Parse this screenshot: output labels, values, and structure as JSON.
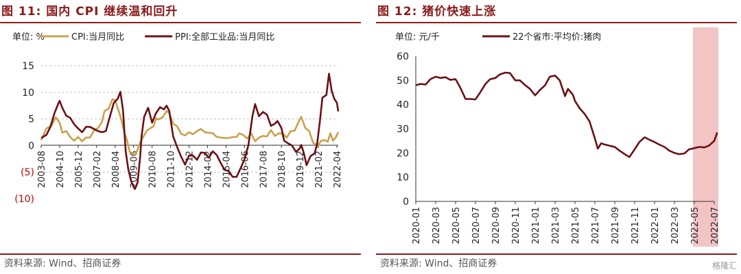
{
  "chart_data": [
    {
      "type": "line",
      "title": "图 11:  国内 CPI 继续温和回升",
      "unit_label": "单位:  %",
      "source": "资料来源:  Wind、招商证券",
      "ylim": [
        -10,
        15
      ],
      "yticks": [
        15,
        10,
        5,
        0,
        -5,
        -10
      ],
      "ytick_labels": [
        "15",
        "10",
        "5",
        "0",
        "(5)",
        "(10)"
      ],
      "negative_label_color": "#C00000",
      "x_range": [
        "2003-08",
        "2022-05"
      ],
      "xtick_labels": [
        "2003-08",
        "2004-10",
        "2005-12",
        "2007-02",
        "2008-04",
        "2009-06",
        "2010-08",
        "2011-10",
        "2012-12",
        "2014-02",
        "2015-04",
        "2016-06",
        "2017-08",
        "2018-10",
        "2019-12",
        "2021-02",
        "2022-04"
      ],
      "grid": "horizontal-dashed",
      "legend_position": "top",
      "series": [
        {
          "name": "CPI:当月同比",
          "color": "#C9A14A",
          "points": [
            [
              "2003-08",
              1.0
            ],
            [
              "2003-12",
              3.2
            ],
            [
              "2004-04",
              3.8
            ],
            [
              "2004-07",
              5.3
            ],
            [
              "2004-10",
              4.3
            ],
            [
              "2004-12",
              2.4
            ],
            [
              "2005-03",
              2.7
            ],
            [
              "2005-06",
              1.6
            ],
            [
              "2005-09",
              0.9
            ],
            [
              "2005-12",
              1.6
            ],
            [
              "2006-03",
              0.8
            ],
            [
              "2006-06",
              1.5
            ],
            [
              "2006-09",
              1.5
            ],
            [
              "2006-12",
              2.8
            ],
            [
              "2007-03",
              3.3
            ],
            [
              "2007-06",
              4.4
            ],
            [
              "2007-08",
              6.5
            ],
            [
              "2007-11",
              6.9
            ],
            [
              "2008-02",
              8.7
            ],
            [
              "2008-04",
              8.5
            ],
            [
              "2008-07",
              6.3
            ],
            [
              "2008-09",
              4.6
            ],
            [
              "2008-11",
              2.4
            ],
            [
              "2009-01",
              1.0
            ],
            [
              "2009-03",
              -1.2
            ],
            [
              "2009-05",
              -1.4
            ],
            [
              "2009-07",
              -1.8
            ],
            [
              "2009-09",
              -0.8
            ],
            [
              "2009-11",
              0.6
            ],
            [
              "2010-01",
              1.5
            ],
            [
              "2010-04",
              2.8
            ],
            [
              "2010-07",
              3.3
            ],
            [
              "2010-09",
              3.6
            ],
            [
              "2010-11",
              5.1
            ],
            [
              "2011-01",
              4.9
            ],
            [
              "2011-04",
              5.3
            ],
            [
              "2011-07",
              6.5
            ],
            [
              "2011-09",
              6.1
            ],
            [
              "2011-12",
              4.1
            ],
            [
              "2012-03",
              3.6
            ],
            [
              "2012-06",
              2.2
            ],
            [
              "2012-09",
              1.9
            ],
            [
              "2012-12",
              2.5
            ],
            [
              "2013-03",
              2.1
            ],
            [
              "2013-06",
              2.7
            ],
            [
              "2013-09",
              3.1
            ],
            [
              "2013-12",
              2.5
            ],
            [
              "2014-03",
              2.4
            ],
            [
              "2014-06",
              2.3
            ],
            [
              "2014-09",
              1.6
            ],
            [
              "2014-12",
              1.5
            ],
            [
              "2015-03",
              1.4
            ],
            [
              "2015-06",
              1.4
            ],
            [
              "2015-09",
              1.6
            ],
            [
              "2015-12",
              1.6
            ],
            [
              "2016-02",
              2.3
            ],
            [
              "2016-05",
              2.0
            ],
            [
              "2016-08",
              1.3
            ],
            [
              "2016-11",
              2.3
            ],
            [
              "2017-02",
              0.8
            ],
            [
              "2017-05",
              1.5
            ],
            [
              "2017-08",
              1.8
            ],
            [
              "2017-11",
              1.7
            ],
            [
              "2018-02",
              2.9
            ],
            [
              "2018-05",
              1.8
            ],
            [
              "2018-08",
              2.3
            ],
            [
              "2018-11",
              2.2
            ],
            [
              "2019-02",
              1.5
            ],
            [
              "2019-05",
              2.7
            ],
            [
              "2019-08",
              2.8
            ],
            [
              "2019-11",
              4.5
            ],
            [
              "2020-01",
              5.4
            ],
            [
              "2020-04",
              3.3
            ],
            [
              "2020-07",
              2.7
            ],
            [
              "2020-10",
              0.5
            ],
            [
              "2020-12",
              0.2
            ],
            [
              "2021-01",
              -0.3
            ],
            [
              "2021-04",
              0.9
            ],
            [
              "2021-07",
              1.0
            ],
            [
              "2021-09",
              0.7
            ],
            [
              "2021-11",
              2.3
            ],
            [
              "2022-01",
              0.9
            ],
            [
              "2022-03",
              1.5
            ],
            [
              "2022-05",
              2.5
            ]
          ]
        },
        {
          "name": "PPI:全部工业品:当月同比",
          "color": "#6B0F14",
          "points": [
            [
              "2003-08",
              1.4
            ],
            [
              "2003-12",
              2.0
            ],
            [
              "2004-03",
              3.5
            ],
            [
              "2004-06",
              6.0
            ],
            [
              "2004-09",
              7.9
            ],
            [
              "2004-10",
              8.4
            ],
            [
              "2004-12",
              7.1
            ],
            [
              "2005-03",
              5.6
            ],
            [
              "2005-06",
              5.2
            ],
            [
              "2005-09",
              4.0
            ],
            [
              "2005-12",
              3.2
            ],
            [
              "2006-03",
              2.5
            ],
            [
              "2006-06",
              3.5
            ],
            [
              "2006-09",
              3.5
            ],
            [
              "2006-12",
              3.1
            ],
            [
              "2007-03",
              2.7
            ],
            [
              "2007-06",
              2.5
            ],
            [
              "2007-09",
              2.7
            ],
            [
              "2007-12",
              5.4
            ],
            [
              "2008-03",
              8.0
            ],
            [
              "2008-06",
              8.8
            ],
            [
              "2008-08",
              10.1
            ],
            [
              "2008-10",
              6.6
            ],
            [
              "2008-12",
              -1.1
            ],
            [
              "2009-02",
              -4.5
            ],
            [
              "2009-04",
              -6.6
            ],
            [
              "2009-06",
              -7.8
            ],
            [
              "2009-07",
              -8.2
            ],
            [
              "2009-09",
              -7.0
            ],
            [
              "2009-11",
              -2.1
            ],
            [
              "2009-12",
              1.7
            ],
            [
              "2010-02",
              5.4
            ],
            [
              "2010-05",
              7.1
            ],
            [
              "2010-08",
              4.3
            ],
            [
              "2010-11",
              6.1
            ],
            [
              "2011-02",
              7.2
            ],
            [
              "2011-05",
              6.8
            ],
            [
              "2011-07",
              7.5
            ],
            [
              "2011-09",
              6.5
            ],
            [
              "2011-12",
              1.7
            ],
            [
              "2012-03",
              -0.3
            ],
            [
              "2012-06",
              -2.1
            ],
            [
              "2012-09",
              -3.6
            ],
            [
              "2012-12",
              -1.9
            ],
            [
              "2013-03",
              -1.9
            ],
            [
              "2013-06",
              -2.7
            ],
            [
              "2013-09",
              -1.3
            ],
            [
              "2013-12",
              -1.4
            ],
            [
              "2014-03",
              -2.3
            ],
            [
              "2014-06",
              -1.1
            ],
            [
              "2014-09",
              -1.8
            ],
            [
              "2014-12",
              -3.3
            ],
            [
              "2015-03",
              -4.6
            ],
            [
              "2015-06",
              -4.8
            ],
            [
              "2015-09",
              -5.9
            ],
            [
              "2015-12",
              -5.9
            ],
            [
              "2016-03",
              -4.3
            ],
            [
              "2016-06",
              -2.6
            ],
            [
              "2016-09",
              0.1
            ],
            [
              "2016-12",
              5.5
            ],
            [
              "2017-02",
              7.8
            ],
            [
              "2017-05",
              5.5
            ],
            [
              "2017-08",
              6.3
            ],
            [
              "2017-11",
              5.8
            ],
            [
              "2018-02",
              3.7
            ],
            [
              "2018-05",
              4.1
            ],
            [
              "2018-07",
              4.6
            ],
            [
              "2018-10",
              3.3
            ],
            [
              "2018-12",
              0.9
            ],
            [
              "2019-03",
              0.4
            ],
            [
              "2019-06",
              0.0
            ],
            [
              "2019-09",
              -1.2
            ],
            [
              "2019-12",
              -0.5
            ],
            [
              "2020-01",
              0.1
            ],
            [
              "2020-03",
              -1.5
            ],
            [
              "2020-05",
              -3.7
            ],
            [
              "2020-08",
              -2.0
            ],
            [
              "2020-11",
              -1.5
            ],
            [
              "2021-01",
              0.3
            ],
            [
              "2021-03",
              4.4
            ],
            [
              "2021-05",
              9.0
            ],
            [
              "2021-08",
              9.5
            ],
            [
              "2021-10",
              13.5
            ],
            [
              "2021-12",
              10.3
            ],
            [
              "2022-02",
              8.8
            ],
            [
              "2022-04",
              8.0
            ],
            [
              "2022-05",
              6.4
            ]
          ]
        }
      ]
    },
    {
      "type": "line",
      "title": "图 12:  猪价快速上涨",
      "unit_label": "单位:  元/千",
      "source": "资料来源:  Wind、招商证券",
      "ylim": [
        0,
        60
      ],
      "yticks": [
        60,
        50,
        40,
        30,
        20,
        10,
        0
      ],
      "x_range": [
        "2020-01",
        "2022-07"
      ],
      "xtick_labels": [
        "2020-01",
        "2020-03",
        "2020-05",
        "2020-07",
        "2020-09",
        "2020-11",
        "2021-01",
        "2021-03",
        "2021-05",
        "2021-07",
        "2021-09",
        "2021-11",
        "2022-01",
        "2022-03",
        "2022-05",
        "2022-07"
      ],
      "highlight_range": [
        "2022-05",
        "2022-07"
      ],
      "highlight_color": "#F2C4C4",
      "grid": "none",
      "legend_position": "top",
      "series": [
        {
          "name": "22个省市:平均价:猪肉",
          "color": "#6B0F14",
          "points": [
            [
              "2020-01",
              48.0
            ],
            [
              "2020-01-15",
              48.5
            ],
            [
              "2020-02",
              48.3
            ],
            [
              "2020-02-15",
              50.5
            ],
            [
              "2020-03",
              51.5
            ],
            [
              "2020-03-15",
              51.0
            ],
            [
              "2020-04",
              51.3
            ],
            [
              "2020-04-15",
              50.2
            ],
            [
              "2020-05",
              50.5
            ],
            [
              "2020-05-15",
              47.0
            ],
            [
              "2020-06",
              42.3
            ],
            [
              "2020-06-15",
              42.3
            ],
            [
              "2020-07",
              42.1
            ],
            [
              "2020-07-15",
              45.0
            ],
            [
              "2020-08",
              48.5
            ],
            [
              "2020-08-15",
              50.5
            ],
            [
              "2020-09",
              51.0
            ],
            [
              "2020-09-15",
              52.5
            ],
            [
              "2020-10",
              53.2
            ],
            [
              "2020-10-15",
              53.0
            ],
            [
              "2020-11",
              50.0
            ],
            [
              "2020-11-15",
              50.0
            ],
            [
              "2020-12",
              48.0
            ],
            [
              "2020-12-15",
              46.5
            ],
            [
              "2021-01",
              43.8
            ],
            [
              "2021-01-15",
              46.0
            ],
            [
              "2021-02",
              48.0
            ],
            [
              "2021-02-15",
              51.5
            ],
            [
              "2021-03",
              52.0
            ],
            [
              "2021-03-15",
              50.0
            ],
            [
              "2021-04",
              43.5
            ],
            [
              "2021-04-10",
              46.5
            ],
            [
              "2021-04-25",
              44.0
            ],
            [
              "2021-05",
              41.5
            ],
            [
              "2021-05-15",
              38.5
            ],
            [
              "2021-06",
              36.0
            ],
            [
              "2021-06-15",
              33.0
            ],
            [
              "2021-07",
              26.0
            ],
            [
              "2021-07-10",
              21.8
            ],
            [
              "2021-07-20",
              24.0
            ],
            [
              "2021-08",
              23.5
            ],
            [
              "2021-08-15",
              23.0
            ],
            [
              "2021-09",
              22.5
            ],
            [
              "2021-09-15",
              21.0
            ],
            [
              "2021-10",
              19.5
            ],
            [
              "2021-10-15",
              18.3
            ],
            [
              "2021-11",
              21.5
            ],
            [
              "2021-11-15",
              24.5
            ],
            [
              "2021-12",
              26.5
            ],
            [
              "2021-12-15",
              25.5
            ],
            [
              "2022-01",
              24.5
            ],
            [
              "2022-01-15",
              23.5
            ],
            [
              "2022-02",
              22.5
            ],
            [
              "2022-02-15",
              21.0
            ],
            [
              "2022-03",
              20.0
            ],
            [
              "2022-03-15",
              19.5
            ],
            [
              "2022-04",
              19.8
            ],
            [
              "2022-04-15",
              21.5
            ],
            [
              "2022-05",
              22.0
            ],
            [
              "2022-05-15",
              22.5
            ],
            [
              "2022-06",
              22.3
            ],
            [
              "2022-06-15",
              23.0
            ],
            [
              "2022-07",
              25.0
            ],
            [
              "2022-07-10",
              28.5
            ]
          ]
        }
      ]
    }
  ],
  "watermark": "格隆汇"
}
